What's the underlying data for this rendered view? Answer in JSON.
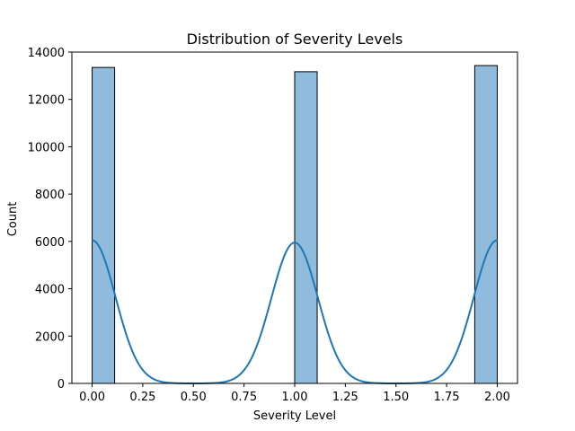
{
  "chart_data": {
    "type": "bar",
    "title": "Distribution of Severity Levels",
    "xlabel": "Severity Level",
    "ylabel": "Count",
    "xlim": [
      -0.1,
      2.1
    ],
    "ylim": [
      0,
      14000
    ],
    "xticks": [
      0.0,
      0.25,
      0.5,
      0.75,
      1.0,
      1.25,
      1.5,
      1.75,
      2.0
    ],
    "xtick_labels": [
      "0.00",
      "0.25",
      "0.50",
      "0.75",
      "1.00",
      "1.25",
      "1.50",
      "1.75",
      "2.00"
    ],
    "yticks": [
      0,
      2000,
      4000,
      6000,
      8000,
      10000,
      12000,
      14000
    ],
    "ytick_labels": [
      "0",
      "2000",
      "4000",
      "6000",
      "8000",
      "10000",
      "12000",
      "14000"
    ],
    "bin_width": 0.1111,
    "bars": [
      {
        "x_start": 0.0,
        "x_end": 0.1111,
        "value": 13350
      },
      {
        "x_start": 0.8889,
        "x_end": 1.0,
        "value": 0
      },
      {
        "x_start": 1.0,
        "x_end": 1.1111,
        "value": 13170
      },
      {
        "x_start": 1.8889,
        "x_end": 2.0,
        "value": 13430
      }
    ],
    "kde": {
      "peaks": [
        {
          "x": 0.0,
          "y": 6050
        },
        {
          "x": 1.0,
          "y": 5950
        },
        {
          "x": 2.0,
          "y": 6050
        }
      ],
      "sigma": 0.115
    },
    "grid": false,
    "colors": {
      "bar_fill": "#8fbcdc",
      "bar_edge": "#000000",
      "kde_line": "#1f77b4"
    }
  }
}
